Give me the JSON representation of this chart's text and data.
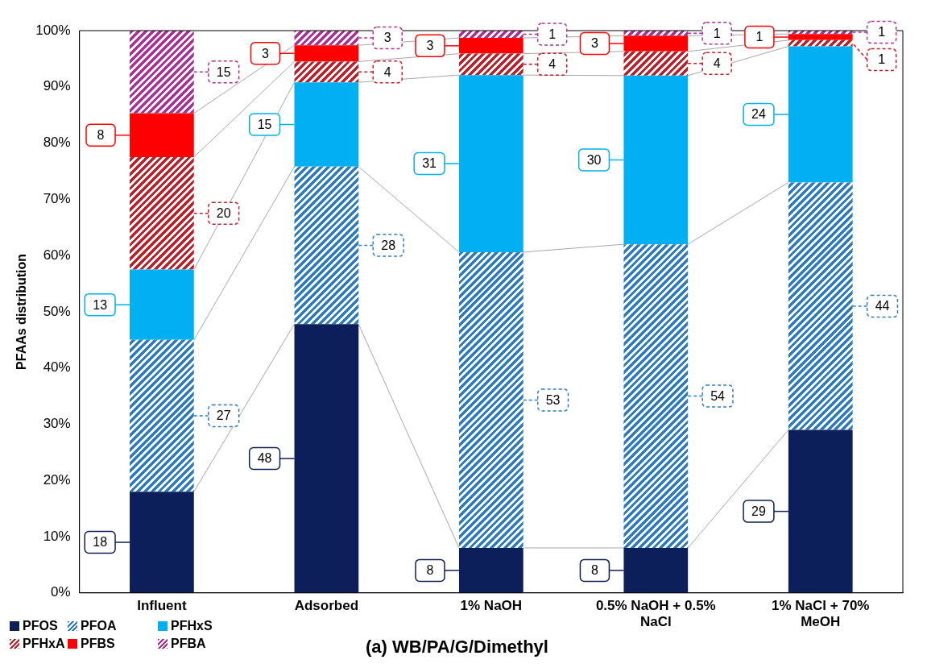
{
  "chart_data": {
    "type": "bar",
    "stacked": true,
    "title": "(a) WB/PA/G/Dimethyl",
    "ylabel": "PFAAs distribution",
    "categories": [
      "Influent",
      "Adsorbed",
      "1% NaOH",
      "0.5% NaOH + 0.5% NaCl",
      "1% NaCl + 70% MeOH"
    ],
    "ylim": [
      0,
      100
    ],
    "yticks": [
      {
        "value": 0,
        "label": "0%"
      },
      {
        "value": 10,
        "label": "10%"
      },
      {
        "value": 20,
        "label": "20%"
      },
      {
        "value": 30,
        "label": "30%"
      },
      {
        "value": 40,
        "label": "40%"
      },
      {
        "value": 50,
        "label": "50%"
      },
      {
        "value": 60,
        "label": "60%"
      },
      {
        "value": 70,
        "label": "70%"
      },
      {
        "value": 80,
        "label": "80%"
      },
      {
        "value": 90,
        "label": "90%"
      },
      {
        "value": 100,
        "label": "100%"
      }
    ],
    "grid": false,
    "legend": "bottom left",
    "series": [
      {
        "name": "PFOS",
        "color": "#0c1f5a",
        "line_style": "solid",
        "values": [
          18,
          47.8,
          8,
          8,
          29
        ],
        "value_labels": [
          "18",
          "48",
          "8",
          "8",
          "29"
        ]
      },
      {
        "name": "PFOA",
        "color": "#2e7cc4",
        "line_style": "dashed",
        "values": [
          27,
          28,
          52.6,
          54,
          44
        ],
        "value_labels": [
          "27",
          "28",
          "53",
          "54",
          "44"
        ]
      },
      {
        "name": "PFHxS",
        "color": "#00b0f0",
        "line_style": "solid",
        "values": [
          12.5,
          15,
          31.5,
          30,
          24.2
        ],
        "value_labels": [
          "13",
          "15",
          "31",
          "30",
          "24"
        ]
      },
      {
        "name": "PFHxA",
        "color": "#c0202a",
        "line_style": "dashed",
        "values": [
          20,
          3.7,
          3.8,
          4.3,
          1.1
        ],
        "value_labels": [
          "20",
          "4",
          "4",
          "4",
          "1"
        ]
      },
      {
        "name": "PFBS",
        "color": "#ff0000",
        "line_style": "solid",
        "values": [
          7.8,
          2.9,
          2.8,
          2.8,
          1.1
        ],
        "value_labels": [
          "8",
          "3",
          "3",
          "3",
          "1"
        ]
      },
      {
        "name": "PFBA",
        "color": "#b0309a",
        "line_style": "dashed",
        "values": [
          14.7,
          2.6,
          1.3,
          0.9,
          0.6
        ],
        "value_labels": [
          "15",
          "3",
          "1",
          "1",
          "1"
        ]
      }
    ]
  }
}
